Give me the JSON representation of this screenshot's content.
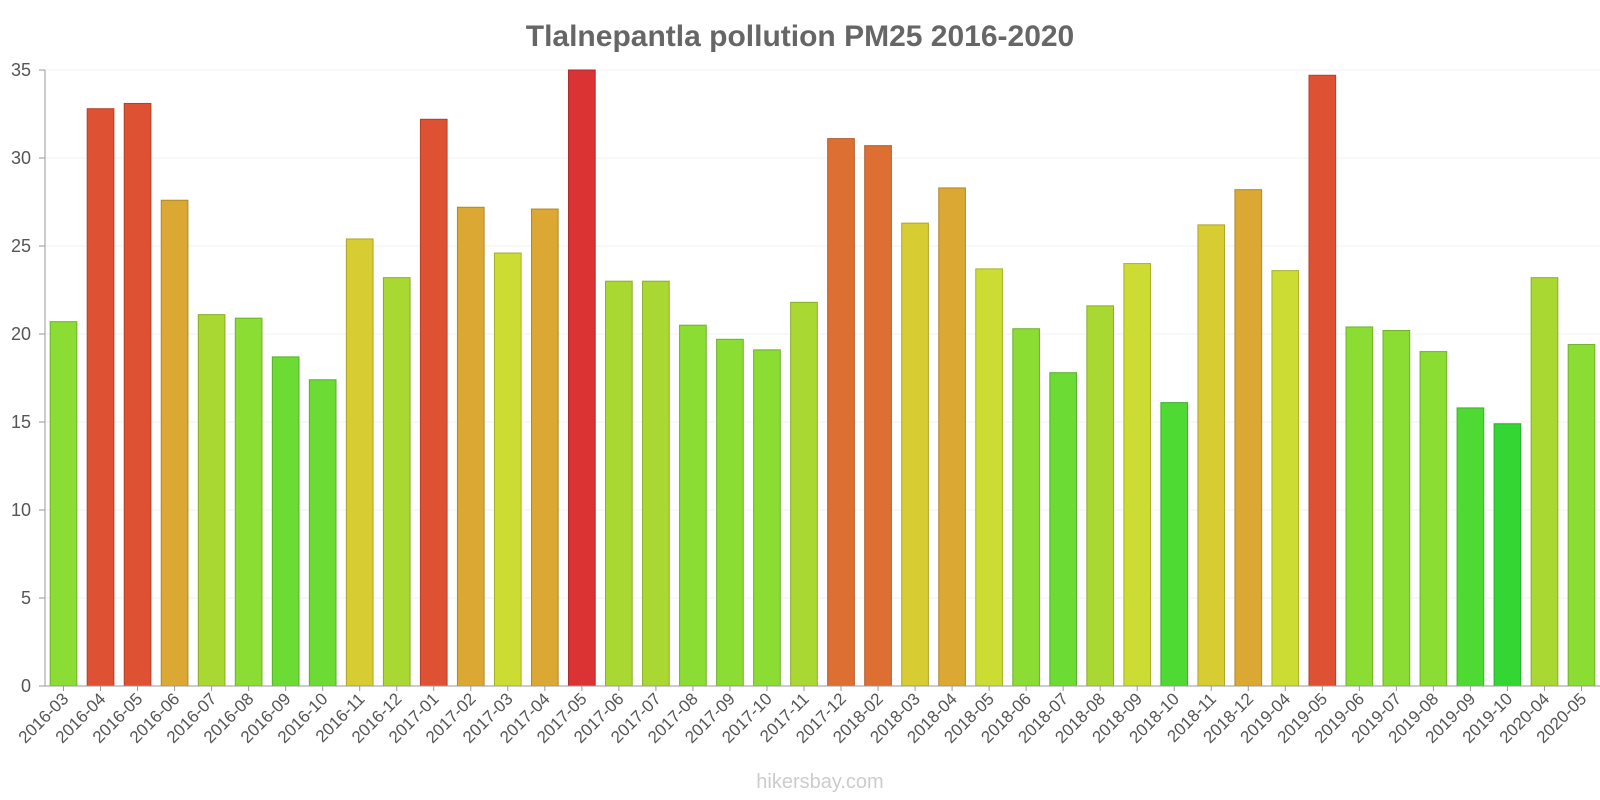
{
  "chart_data": {
    "type": "bar",
    "title": "Tlalnepantla pollution PM25 2016-2020",
    "xlabel": "",
    "ylabel": "",
    "ylim": [
      0,
      35
    ],
    "yticks": [
      0,
      5,
      10,
      15,
      20,
      25,
      30,
      35
    ],
    "categories": [
      "2016-03",
      "2016-04",
      "2016-05",
      "2016-06",
      "2016-07",
      "2016-08",
      "2016-09",
      "2016-10",
      "2016-11",
      "2016-12",
      "2017-01",
      "2017-02",
      "2017-03",
      "2017-04",
      "2017-05",
      "2017-06",
      "2017-07",
      "2017-08",
      "2017-09",
      "2017-10",
      "2017-11",
      "2017-12",
      "2018-02",
      "2018-03",
      "2018-04",
      "2018-05",
      "2018-06",
      "2018-07",
      "2018-08",
      "2018-09",
      "2018-10",
      "2018-11",
      "2018-12",
      "2019-04",
      "2019-05",
      "2019-06",
      "2019-07",
      "2019-08",
      "2019-09",
      "2019-10",
      "2020-04",
      "2020-05"
    ],
    "values": [
      20.7,
      32.8,
      33.1,
      27.6,
      21.1,
      20.9,
      18.7,
      17.4,
      25.4,
      23.2,
      32.2,
      27.2,
      24.6,
      27.1,
      35.0,
      23.0,
      23.0,
      20.5,
      19.7,
      19.1,
      21.8,
      31.1,
      30.7,
      26.3,
      28.3,
      23.7,
      20.3,
      17.8,
      21.6,
      24.0,
      16.1,
      26.2,
      28.2,
      23.6,
      34.7,
      20.4,
      20.2,
      19.0,
      15.8,
      14.9,
      23.2,
      19.4
    ],
    "color_scale": [
      {
        "threshold": 15,
        "color": "#33d633"
      },
      {
        "threshold": 17,
        "color": "#4fd933"
      },
      {
        "threshold": 19,
        "color": "#6cdb33"
      },
      {
        "threshold": 21,
        "color": "#8bdc33"
      },
      {
        "threshold": 23.5,
        "color": "#aad833"
      },
      {
        "threshold": 25,
        "color": "#cddc33"
      },
      {
        "threshold": 27,
        "color": "#d8cc33"
      },
      {
        "threshold": 29,
        "color": "#dba933"
      },
      {
        "threshold": 32,
        "color": "#de6f33"
      },
      {
        "threshold": 34.8,
        "color": "#de5133"
      },
      {
        "threshold": 99,
        "color": "#db3333"
      }
    ]
  },
  "credit": "hikersbay.com"
}
